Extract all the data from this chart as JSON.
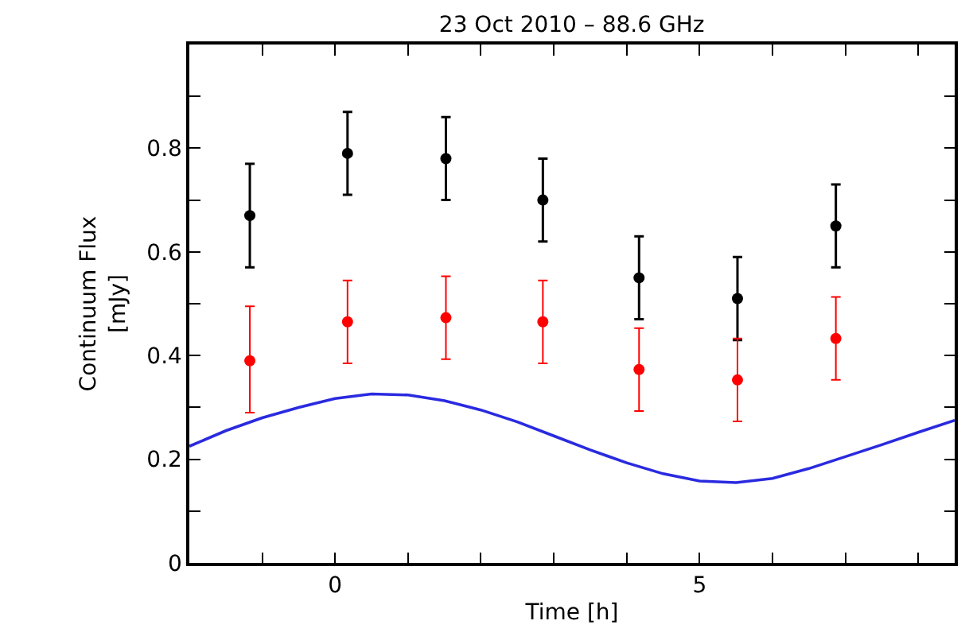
{
  "chart_data": {
    "type": "scatter",
    "title": "23 Oct 2010 – 88.6 GHz",
    "xlabel": "Time [h]",
    "ylabel": "Continuum Flux [mJy]",
    "xlim": [
      -2,
      8.5
    ],
    "ylim": [
      0,
      1
    ],
    "xticks": [
      {
        "value": -1,
        "label": null
      },
      0,
      {
        "value": 1,
        "label": null
      },
      {
        "value": 2,
        "label": null
      },
      {
        "value": 3,
        "label": null
      },
      {
        "value": 4,
        "label": null
      },
      5,
      {
        "value": 6,
        "label": null
      },
      {
        "value": 7,
        "label": null
      },
      {
        "value": 8,
        "label": null
      }
    ],
    "yticks": [
      0,
      {
        "value": 0.1,
        "label": null
      },
      0.2,
      {
        "value": 0.3,
        "label": null
      },
      0.4,
      {
        "value": 0.5,
        "label": null
      },
      0.6,
      {
        "value": 0.7,
        "label": null
      },
      0.8,
      {
        "value": 0.9,
        "label": null
      }
    ],
    "grid": false,
    "legend": false,
    "marker": "circle",
    "series": [
      {
        "color": "#000000",
        "x": [
          -1.17,
          0.17,
          1.52,
          2.85,
          4.17,
          5.52,
          6.87
        ],
        "values": [
          0.67,
          0.79,
          0.78,
          0.7,
          0.55,
          0.51,
          0.65
        ],
        "errors": [
          0.1,
          0.08,
          0.08,
          0.08,
          0.08,
          0.08,
          0.08
        ]
      },
      {
        "color": "#ff0000",
        "x": [
          -1.17,
          0.17,
          1.52,
          2.85,
          4.17,
          5.52,
          6.87
        ],
        "values": [
          0.39,
          0.465,
          0.473,
          0.465,
          0.373,
          0.353,
          0.433
        ],
        "errors": [
          [
            0.29,
            0.495
          ],
          0.08,
          0.08,
          0.08,
          0.08,
          0.08,
          0.08
        ],
        "line_style": "dotted"
      },
      {
        "type": "line",
        "color": "#2a2ae0",
        "marker": "none",
        "line_style": "solid",
        "x": [
          -2,
          -1.5,
          -1,
          -0.5,
          0,
          0.5,
          1,
          1.5,
          2,
          2.5,
          3,
          3.5,
          4,
          4.5,
          5,
          5.5,
          6,
          6.5,
          7,
          7.5,
          8,
          8.5
        ],
        "values": [
          0.225,
          0.255,
          0.28,
          0.3,
          0.317,
          0.326,
          0.324,
          0.313,
          0.295,
          0.272,
          0.245,
          0.218,
          0.193,
          0.172,
          0.158,
          0.155,
          0.163,
          0.182,
          0.205,
          0.228,
          0.252,
          0.275
        ]
      }
    ]
  }
}
